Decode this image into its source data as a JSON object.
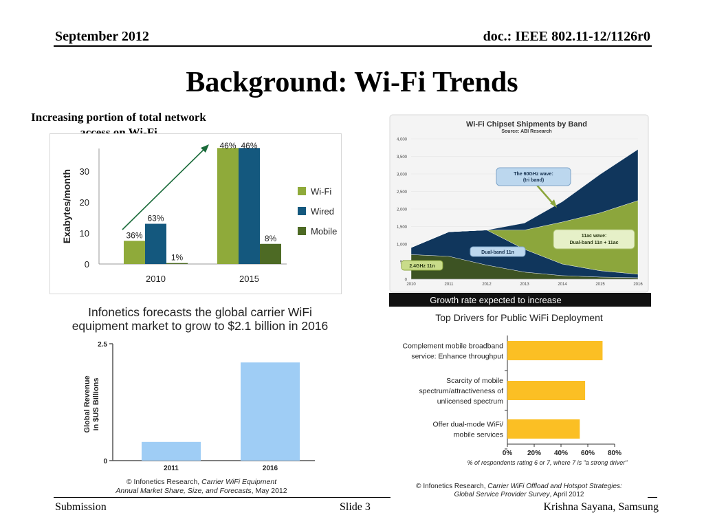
{
  "header": {
    "date": "September 2012",
    "doc": "doc.: IEEE 802.11-12/1126r0"
  },
  "slide_title": "Background: Wi-Fi Trends",
  "footer": {
    "left": "Submission",
    "center": "Slide 3",
    "right": "Krishna Sayana, Samsung"
  },
  "colors": {
    "wifi": "#8faa3a",
    "wired": "#14587e",
    "mobile": "#4d6a24",
    "arrow": "#1a6b3a",
    "forecast_bar": "#9fcdf5",
    "driver_bar": "#fbbf24",
    "band_navy": "#10365c",
    "band_green": "#8ca63c",
    "band_dark": "#3d5323",
    "footer_bar": "#111111"
  },
  "chart1": {
    "caption": "Increasing portion of total network access on Wi-Fi"
  },
  "chart2": {
    "footer": "Growth rate expected to increase"
  },
  "chart3": {
    "title": "Infonetics forecasts the global carrier WiFi equipment market to grow to $2.1 billion in 2016",
    "source_prefix": "© Infonetics Research,",
    "source_italic_a": "Carrier WiFi Equipment",
    "source_italic_b": "Annual Market Share, Size, and Forecasts",
    "source_suffix": ", May 2012"
  },
  "chart4": {
    "title": "Top Drivers for Public WiFi Deployment",
    "source_prefix": "© Infonetics Research,",
    "source_italic_a": "Carrier WiFi Offload and Hotspot Strategies:",
    "source_italic_b": "Global Service Provider Survey",
    "source_suffix": ", April 2012"
  },
  "chart_data": [
    {
      "type": "bar",
      "categories": [
        "2010",
        "2015"
      ],
      "ylabel": "Exabytes/month",
      "ylim": [
        0,
        37
      ],
      "yticks": [
        0,
        10,
        20,
        30
      ],
      "series": [
        {
          "name": "Wi-Fi",
          "values": [
            7.5,
            37.5
          ],
          "labels": [
            "36%",
            "46%"
          ]
        },
        {
          "name": "Wired",
          "values": [
            13,
            37.5
          ],
          "labels": [
            "63%",
            "46%"
          ]
        },
        {
          "name": "Mobile",
          "values": [
            0.3,
            6.5
          ],
          "labels": [
            "1%",
            "8%"
          ]
        }
      ],
      "legend": "right"
    },
    {
      "type": "area",
      "title": "Wi-Fi Chipset Shipments by Band",
      "subtitle": "Source: ABI Research",
      "x": [
        2010,
        2011,
        2012,
        2013,
        2014,
        2015,
        2016
      ],
      "ylim": [
        0,
        4000
      ],
      "yticks": [
        "0",
        "500",
        "1,000",
        "1,500",
        "2,000",
        "2,500",
        "3,000",
        "3,500",
        "4,000"
      ],
      "stacked": true,
      "annotations": [
        "The 60GHz wave: (tri band)",
        "11ac wave: Dual-band 11n + 11ac",
        "Dual-band 11n",
        "2.4GHz 11n"
      ],
      "series": [
        {
          "values": [
            700,
            650,
            400,
            200,
            100,
            60,
            40
          ]
        },
        {
          "values": [
            200,
            700,
            1000,
            650,
            330,
            180,
            100
          ]
        },
        {
          "values": [
            0,
            0,
            0,
            550,
            1200,
            1650,
            2100
          ]
        },
        {
          "values": [
            0,
            0,
            0,
            200,
            580,
            1100,
            1460
          ]
        }
      ]
    },
    {
      "type": "bar",
      "categories": [
        "2011",
        "2016"
      ],
      "values": [
        0.4,
        2.1
      ],
      "ylabel": "Global Revenue in $US Billions",
      "ylim": [
        0,
        2.5
      ],
      "yticks": [
        "0",
        "2.5"
      ]
    },
    {
      "type": "bar",
      "orientation": "horizontal",
      "categories": [
        "Complement mobile broadband service: Enhance throughput",
        "Scarcity of mobile spectrum/attractiveness of unlicensed spectrum",
        "Offer dual-mode WiFi/ mobile services"
      ],
      "values": [
        71,
        58,
        54
      ],
      "xlim": [
        0,
        80
      ],
      "xticks": [
        "0%",
        "20%",
        "40%",
        "60%",
        "80%"
      ],
      "xlabel": "% of respondents rating 6 or 7, where 7 is \"a strong driver\""
    }
  ]
}
